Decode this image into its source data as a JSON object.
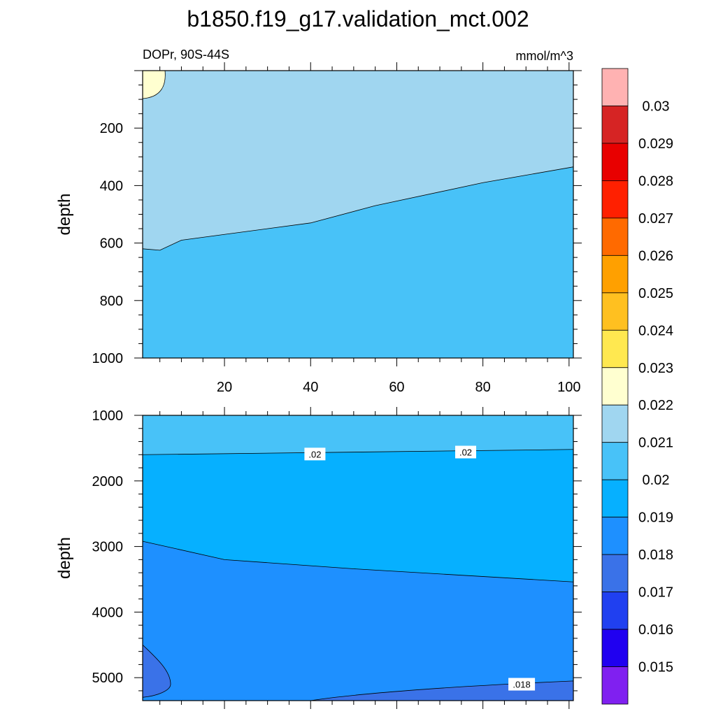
{
  "chart_data": [
    {
      "type": "contour",
      "title": "b1850.f19_g17.validation_mct.002",
      "left_subtitle": "DOPr, 90S-44S",
      "right_subtitle": "mmol/m^3",
      "ylabel": "depth",
      "xlabel": "",
      "xlim": [
        1,
        101
      ],
      "ylim": [
        1000,
        0
      ],
      "xticks": [
        "20",
        "40",
        "60",
        "80",
        "100"
      ],
      "yticks": [
        "200",
        "400",
        "600",
        "800",
        "1000"
      ],
      "regions": [
        {
          "range": "0.021-0.022",
          "color": "#a0d6f0"
        },
        {
          "range": "0.02-0.021",
          "color": "#48c2f8"
        },
        {
          "range": "0.022-0.023",
          "color": "#ffffd0"
        }
      ],
      "boundaries": [
        {
          "level": 0.021,
          "x": [
            1,
            5,
            10,
            20,
            40,
            55,
            80,
            101
          ],
          "depth": [
            620,
            625,
            590,
            570,
            530,
            470,
            390,
            335
          ]
        }
      ],
      "contour_labels": []
    },
    {
      "type": "contour",
      "ylabel": "depth",
      "xlim": [
        1,
        101
      ],
      "ylim": [
        5350,
        1000
      ],
      "yticks": [
        "1000",
        "2000",
        "3000",
        "4000",
        "5000"
      ],
      "regions": [
        {
          "range": "0.02-0.021",
          "color": "#48c2f8"
        },
        {
          "range": "0.019-0.02",
          "color": "#06b0ff"
        },
        {
          "range": "0.018-0.019",
          "color": "#1e90ff"
        },
        {
          "range": "0.017-0.018",
          "color": "#3a72e8"
        }
      ],
      "boundaries": [
        {
          "level": 0.02,
          "x": [
            1,
            101
          ],
          "depth": [
            1600,
            1520
          ]
        },
        {
          "level": 0.019,
          "x": [
            1,
            20,
            50,
            101
          ],
          "depth": [
            2920,
            3200,
            3340,
            3540
          ]
        },
        {
          "level": 0.018,
          "x": [
            40,
            70,
            101
          ],
          "depth": [
            5350,
            5150,
            5050
          ]
        }
      ],
      "contour_labels": [
        {
          "text": ".02",
          "x": 41,
          "depth": 1590
        },
        {
          "text": ".02",
          "x": 76,
          "depth": 1560
        },
        {
          "text": ".018",
          "x": 89,
          "depth": 5100
        }
      ]
    }
  ],
  "colorbar": {
    "labels": [
      "0.03",
      "0.029",
      "0.028",
      "0.027",
      "0.026",
      "0.025",
      "0.024",
      "0.023",
      "0.022",
      "0.021",
      "0.02",
      "0.019",
      "0.018",
      "0.017",
      "0.016",
      "0.015"
    ],
    "colors": [
      "#ffb2b2",
      "#d62424",
      "#e80000",
      "#ff2000",
      "#ff6a00",
      "#ffa000",
      "#ffc020",
      "#ffe850",
      "#ffffd0",
      "#a0d6f0",
      "#48c2f8",
      "#06b0ff",
      "#1e90ff",
      "#3a72e8",
      "#2040f0",
      "#2000f0",
      "#8020f0"
    ]
  }
}
